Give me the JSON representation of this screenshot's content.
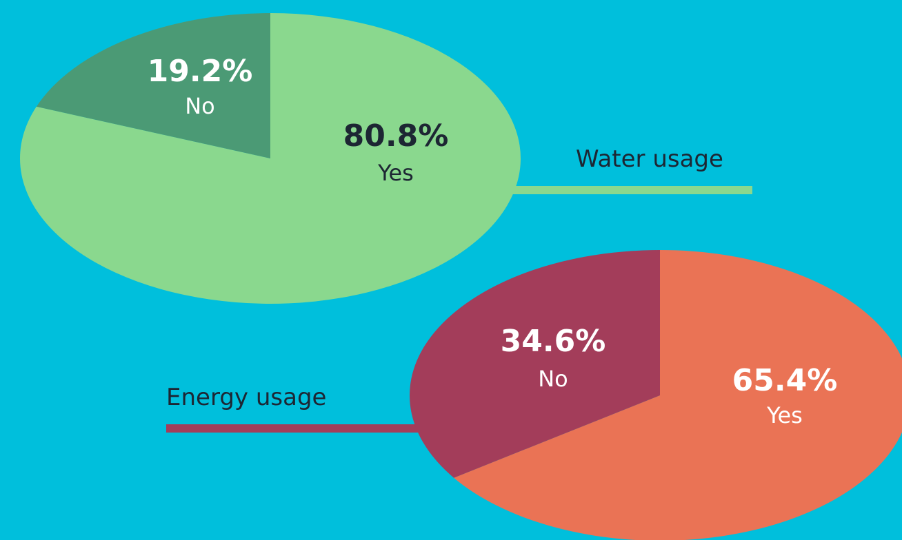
{
  "background": "#00bfdc",
  "chart_data": [
    {
      "type": "pie",
      "title": "Water usage",
      "slices": [
        {
          "label": "Yes",
          "value": 80.8,
          "value_label": "80.8%",
          "color": "#8ad88e",
          "label_color": "#1d2633"
        },
        {
          "label": "No",
          "value": 19.2,
          "value_label": "19.2%",
          "color": "#4b9a75",
          "label_color": "#ffffff"
        }
      ],
      "leader_color": "#8ad88e"
    },
    {
      "type": "pie",
      "title": "Energy usage",
      "slices": [
        {
          "label": "Yes",
          "value": 65.4,
          "value_label": "65.4%",
          "color": "#ea7355",
          "label_color": "#ffffff"
        },
        {
          "label": "No",
          "value": 34.6,
          "value_label": "34.6%",
          "color": "#a33d5a",
          "label_color": "#ffffff"
        }
      ],
      "leader_color": "#a33d5a"
    }
  ]
}
